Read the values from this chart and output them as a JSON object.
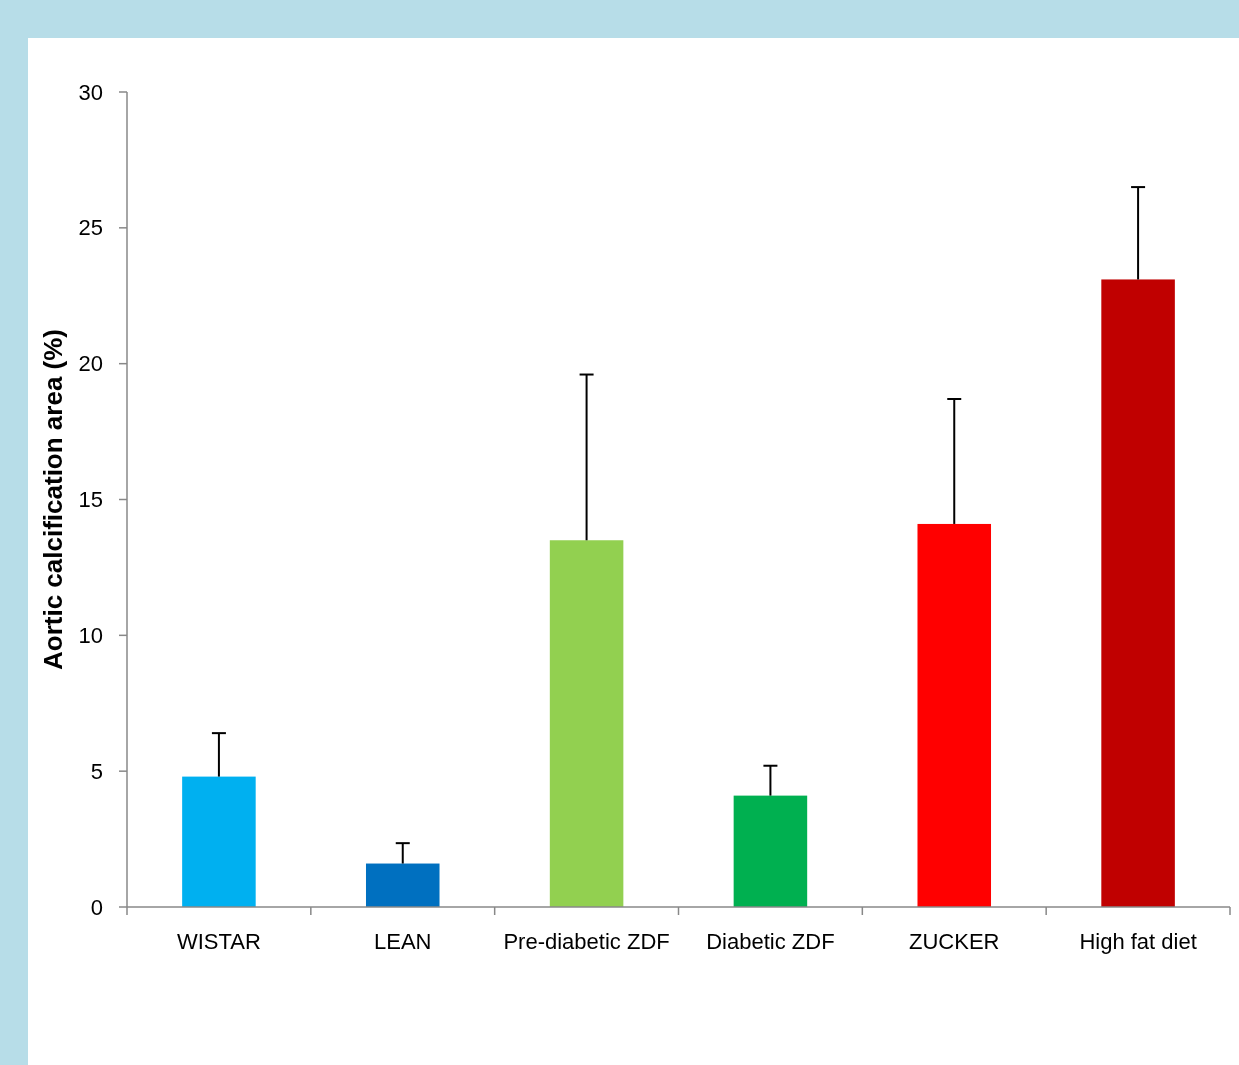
{
  "chart_data": {
    "type": "bar",
    "ylabel": "Aortic calcification area (%)",
    "categories": [
      "WISTAR",
      "LEAN",
      "Pre-diabetic ZDF",
      "Diabetic ZDF",
      "ZUCKER",
      "High fat diet"
    ],
    "values": [
      4.8,
      1.6,
      13.5,
      4.1,
      14.1,
      23.1
    ],
    "colors": [
      "#00b0f0",
      "#0070c0",
      "#92d050",
      "#00b050",
      "#ff0000",
      "#c00000"
    ],
    "errors": [
      [
        4.8,
        6.4
      ],
      [
        1.6,
        2.35
      ],
      [
        13.5,
        19.6
      ],
      [
        4.1,
        5.2
      ],
      [
        14.1,
        18.7
      ],
      [
        23.1,
        26.5
      ]
    ],
    "ylim": [
      0,
      30
    ],
    "yticks": [
      0,
      5,
      10,
      15,
      20,
      25,
      30
    ],
    "grid": false
  }
}
